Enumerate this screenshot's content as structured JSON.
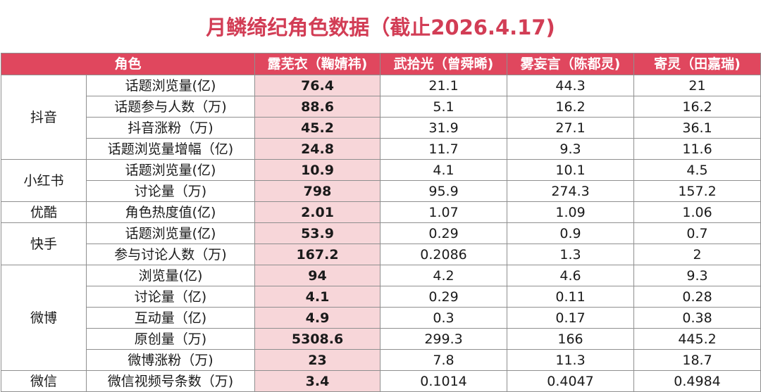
{
  "title": "月鳞绮纪角色数据（截止2026.4.17)",
  "colors": {
    "header_bg": "#e0475e",
    "title": "#d23d55",
    "highlight_col": "#f7d6d9"
  },
  "table": {
    "headers": [
      "角色",
      "露芜衣（鞠婧祎)",
      "武拾光（曾舜晞)",
      "雾妄言（陈都灵)",
      "寄灵（田嘉瑞)"
    ],
    "platforms": [
      "抖音",
      "小红书",
      "优酷",
      "快手",
      "微博",
      "微信"
    ],
    "rows": [
      {
        "metric": "话题浏览量(亿)",
        "values": [
          "76.4",
          "21.1",
          "44.3",
          "21"
        ]
      },
      {
        "metric": "话题参与人数（万)",
        "values": [
          "88.6",
          "5.1",
          "16.2",
          "16.2"
        ]
      },
      {
        "metric": "抖音涨粉（万)",
        "values": [
          "45.2",
          "31.9",
          "27.1",
          "36.1"
        ]
      },
      {
        "metric": "话题浏览量增幅（亿)",
        "values": [
          "24.8",
          "11.7",
          "9.3",
          "11.6"
        ]
      },
      {
        "metric": "话题浏览量(亿)",
        "values": [
          "10.9",
          "4.1",
          "10.1",
          "4.5"
        ]
      },
      {
        "metric": "讨论量（万)",
        "values": [
          "798",
          "95.9",
          "274.3",
          "157.2"
        ]
      },
      {
        "metric": "角色热度值(亿)",
        "values": [
          "2.01",
          "1.07",
          "1.09",
          "1.06"
        ]
      },
      {
        "metric": "话题浏览量(亿)",
        "values": [
          "53.9",
          "0.29",
          "0.9",
          "0.7"
        ]
      },
      {
        "metric": "参与讨论人数（万)",
        "values": [
          "167.2",
          "0.2086",
          "1.3",
          "2"
        ]
      },
      {
        "metric": "浏览量(亿)",
        "values": [
          "94",
          "4.2",
          "4.6",
          "9.3"
        ]
      },
      {
        "metric": "讨论量（亿)",
        "values": [
          "4.1",
          "0.29",
          "0.11",
          "0.28"
        ]
      },
      {
        "metric": "互动量（亿)",
        "values": [
          "4.9",
          "0.3",
          "0.17",
          "0.38"
        ]
      },
      {
        "metric": "原创量（万)",
        "values": [
          "5308.6",
          "299.3",
          "166",
          "445.2"
        ]
      },
      {
        "metric": "微博涨粉（万)",
        "values": [
          "23",
          "7.8",
          "11.3",
          "18.7"
        ]
      },
      {
        "metric": "微信视频号条数（万)",
        "values": [
          "3.4",
          "0.1014",
          "0.4047",
          "0.4984"
        ]
      }
    ]
  }
}
